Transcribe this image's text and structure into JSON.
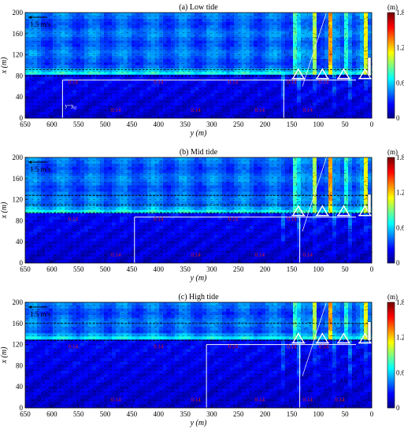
{
  "chart_data": [
    {
      "type": "heatmap",
      "title": "(a) Low tide",
      "xlabel": "y (m)",
      "ylabel": "x (m)",
      "xlim": [
        650,
        0
      ],
      "ylim": [
        0,
        200
      ],
      "x_ticks": [
        "650",
        "600",
        "550",
        "500",
        "450",
        "400",
        "350",
        "300",
        "250",
        "200",
        "150",
        "100",
        "50",
        "0"
      ],
      "y_ticks": [
        "0",
        "40",
        "80",
        "120",
        "160",
        "200"
      ],
      "colorbar": {
        "label": "(m)",
        "min": 0,
        "max": 1.8,
        "ticks": [
          "0",
          "0.6",
          "1.2",
          "1.8"
        ]
      },
      "vector_scale": "1.5 m/s",
      "horizontal_lines": [
        80,
        92
      ],
      "white_profile_y": [
        580,
        165
      ],
      "breakwater_segments_y": [
        [
          150,
          125
        ],
        [
          105,
          80
        ],
        [
          65,
          40
        ],
        [
          25,
          0
        ]
      ],
      "contour_labels": [
        "0.14",
        "0.14",
        "0.14",
        "0.14",
        "0.14",
        "0.14",
        "0.14",
        "0.14",
        "0.14"
      ],
      "profile_labels": [
        "y=y",
        "62"
      ]
    },
    {
      "type": "heatmap",
      "title": "(b) Mid tide",
      "xlabel": "y (m)",
      "ylabel": "x (m)",
      "xlim": [
        650,
        0
      ],
      "ylim": [
        0,
        200
      ],
      "x_ticks": [
        "650",
        "600",
        "550",
        "500",
        "450",
        "400",
        "350",
        "300",
        "250",
        "200",
        "150",
        "100",
        "50",
        "0"
      ],
      "y_ticks": [
        "0",
        "40",
        "80",
        "120",
        "160",
        "200"
      ],
      "colorbar": {
        "label": "(m)",
        "min": 0,
        "max": 1.8,
        "ticks": [
          "0",
          "0.6",
          "1.2",
          "1.8"
        ]
      },
      "vector_scale": "1.5 m/s",
      "horizontal_lines": [
        95,
        110,
        128
      ],
      "white_profile_y": [
        445,
        135
      ],
      "breakwater_segments_y": [
        [
          150,
          125
        ],
        [
          105,
          80
        ],
        [
          65,
          40
        ],
        [
          25,
          0
        ]
      ],
      "contour_labels": [
        "0.14",
        "0.14",
        "0.14",
        "0.14",
        "0.14",
        "0.14",
        "0.14",
        "0.14"
      ],
      "profile_labels": []
    },
    {
      "type": "heatmap",
      "title": "(c) High tide",
      "xlabel": "y (m)",
      "ylabel": "x (m)",
      "xlim": [
        650,
        0
      ],
      "ylim": [
        0,
        200
      ],
      "x_ticks": [
        "650",
        "600",
        "550",
        "500",
        "450",
        "400",
        "350",
        "300",
        "250",
        "200",
        "150",
        "100",
        "50",
        "0"
      ],
      "y_ticks": [
        "0",
        "40",
        "80",
        "120",
        "160",
        "200"
      ],
      "colorbar": {
        "label": "(m)",
        "min": 0,
        "max": 1.8,
        "ticks": [
          "0",
          "0.6",
          "1.2",
          "1.8"
        ]
      },
      "vector_scale": "1.5 m/s",
      "horizontal_lines": [
        128,
        160
      ],
      "white_profile_y": [
        310,
        135
      ],
      "breakwater_segments_y": [
        [
          150,
          125
        ],
        [
          105,
          80
        ],
        [
          65,
          40
        ],
        [
          25,
          0
        ]
      ],
      "contour_labels": [
        "0.14",
        "0.14",
        "0.14",
        "0.14",
        "0.14",
        "0.14",
        "0.14",
        "0.14",
        "0.14",
        "0.14"
      ],
      "profile_labels": []
    }
  ],
  "colors": {
    "colormap": [
      "#00008f",
      "#0000ff",
      "#0080ff",
      "#00ffff",
      "#80ff80",
      "#ffff00",
      "#ff8000",
      "#ff0000",
      "#800000"
    ],
    "contour": "#d41c1c",
    "profile": "#ffffff"
  }
}
